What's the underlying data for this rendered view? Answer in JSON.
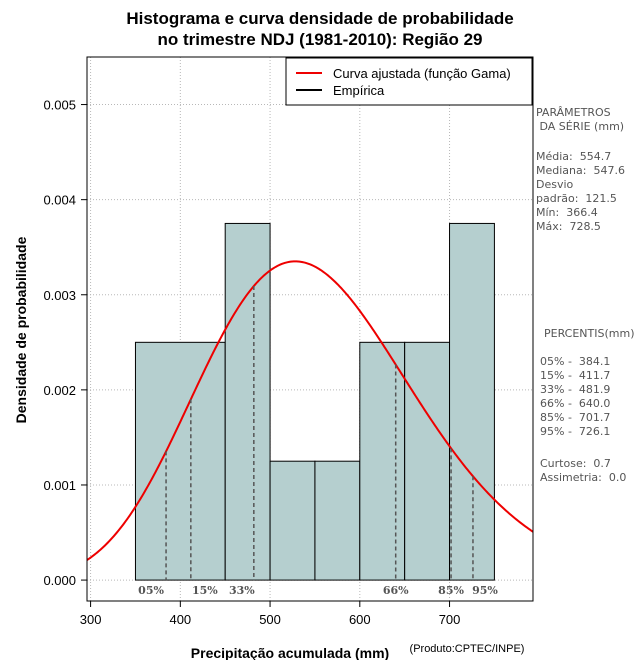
{
  "chart_data": {
    "type": "bar",
    "title_line1": "Histograma e curva densidade de probabilidade",
    "title_line2": "no trimestre NDJ (1981-2010): Região 29",
    "xlabel": "Precipitação acumulada (mm)",
    "ylabel": "Densidade de probabilidade",
    "credit": "(Produto:CPTEC/INPE)",
    "xlim": [
      296,
      793
    ],
    "ylim": [
      -0.00022,
      0.0055
    ],
    "xticks": [
      "300",
      "400",
      "500",
      "600",
      "700"
    ],
    "yticks": [
      "0.000",
      "0.001",
      "0.002",
      "0.003",
      "0.004",
      "0.005"
    ],
    "grid": true,
    "bins": [
      {
        "start": 350,
        "end": 450,
        "density": 0.0025
      },
      {
        "start": 450,
        "end": 500,
        "density": 0.00375
      },
      {
        "start": 500,
        "end": 550,
        "density": 0.00125
      },
      {
        "start": 550,
        "end": 600,
        "density": 0.00125
      },
      {
        "start": 600,
        "end": 650,
        "density": 0.0025
      },
      {
        "start": 650,
        "end": 700,
        "density": 0.0025
      },
      {
        "start": 700,
        "end": 750,
        "density": 0.00375
      }
    ],
    "bar_color": "#b5cfcf",
    "gamma_fit": {
      "mean": 554.7,
      "sd": 121.5,
      "color": "#ee0000"
    },
    "legend": {
      "position": "top-right",
      "entries": [
        {
          "label": "Curva ajustada (função Gama)",
          "color": "#ee0000"
        },
        {
          "label": "Empírica",
          "color": "#000000"
        }
      ]
    },
    "percentile_markers": [
      {
        "label": "05%",
        "value": 384.1
      },
      {
        "label": "15%",
        "value": 411.7
      },
      {
        "label": "33%",
        "value": 481.9
      },
      {
        "label": "66%",
        "value": 640.0
      },
      {
        "label": "85%",
        "value": 701.7
      },
      {
        "label": "95%",
        "value": 726.1
      }
    ]
  },
  "stats_panel": {
    "params_title": "PARÂMETROS\n DA SÉRIE (mm)",
    "params_body": "Média:  554.7\nMediana:  547.6\nDesvio\npadrão:  121.5\nMín:  366.4\nMáx:  728.5",
    "percentis_title": "PERCENTIS(mm)",
    "percentis_body": "05% -  384.1\n15% -  411.7\n33% -  481.9\n66% -  640.0\n85% -  701.7\n95% -  726.1",
    "extra_body": "Curtose:  0.7\nAssimetria:  0.0"
  }
}
